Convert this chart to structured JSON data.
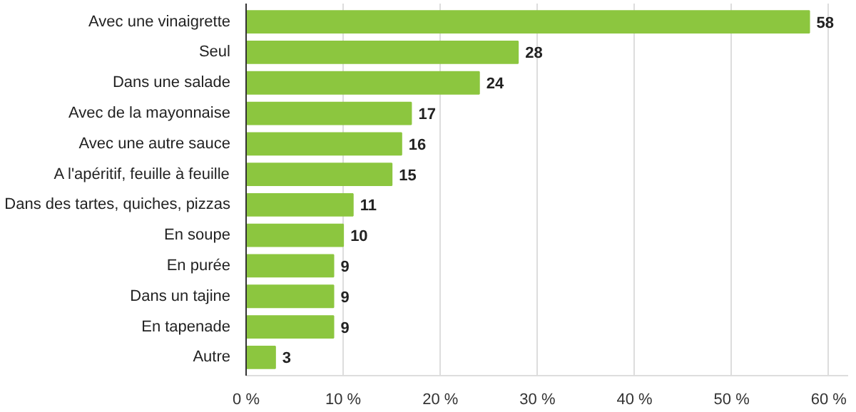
{
  "chart_data": {
    "type": "bar",
    "orientation": "horizontal",
    "categories": [
      "Avec une vinaigrette",
      "Seul",
      "Dans une salade",
      "Avec de la mayonnaise",
      "Avec une autre sauce",
      "A l'apéritif, feuille à feuille",
      "Dans des tartes, quiches, pizzas",
      "En soupe",
      "En purée",
      "Dans un tajine",
      "En tapenade",
      "Autre"
    ],
    "values": [
      58,
      28,
      24,
      17,
      16,
      15,
      11,
      10,
      9,
      9,
      9,
      3
    ],
    "color": "#8cc63f",
    "xlim": [
      0,
      62
    ],
    "xticks": [
      {
        "value": 0,
        "label": "0 %"
      },
      {
        "value": 10,
        "label": "10 %"
      },
      {
        "value": 20,
        "label": "20 %"
      },
      {
        "value": 30,
        "label": "30 %"
      },
      {
        "value": 40,
        "label": "40 %"
      },
      {
        "value": 50,
        "label": "50 %"
      },
      {
        "value": 60,
        "label": "60 %"
      }
    ],
    "grid": "x",
    "data_labels": true
  }
}
